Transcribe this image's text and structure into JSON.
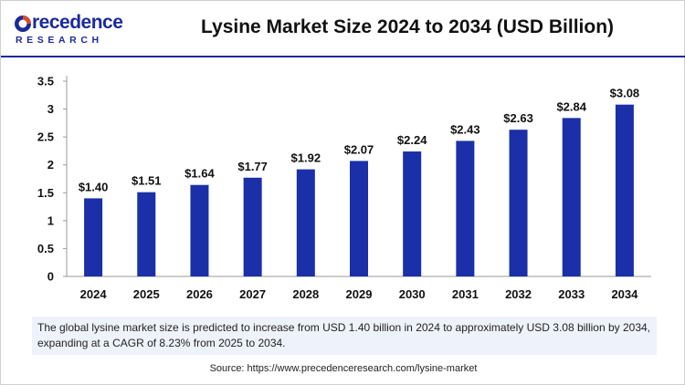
{
  "header": {
    "logo_word": "recedence",
    "logo_sub": "RESEARCH",
    "title": "Lysine Market Size 2024 to 2034 (USD Billion)"
  },
  "colors": {
    "bar": "#1a2fa8",
    "brand": "#1b2a9a",
    "accent": "#d94a2a"
  },
  "chart_data": {
    "type": "bar",
    "categories": [
      "2024",
      "2025",
      "2026",
      "2027",
      "2028",
      "2029",
      "2030",
      "2031",
      "2032",
      "2033",
      "2034"
    ],
    "values": [
      1.4,
      1.51,
      1.64,
      1.77,
      1.92,
      2.07,
      2.24,
      2.43,
      2.63,
      2.84,
      3.08
    ],
    "data_labels": [
      "$1.40",
      "$1.51",
      "$1.64",
      "$1.77",
      "$1.92",
      "$2.07",
      "$2.24",
      "$2.43",
      "$2.63",
      "$2.84",
      "$3.08"
    ],
    "title": "Lysine Market Size 2024 to 2034 (USD Billion)",
    "xlabel": "",
    "ylabel": "",
    "ylim": [
      0,
      3.5
    ],
    "yticks": [
      "0",
      "0.5",
      "1",
      "1.5",
      "2",
      "2.5",
      "3",
      "3.5"
    ],
    "grid": false,
    "legend": "none"
  },
  "note": "The global lysine market size is predicted to increase from USD 1.40 billion in 2024 to approximately USD 3.08 billion by 2034, expanding at a CAGR of 8.23% from 2025 to 2034.",
  "source": "Source: https://www.precedenceresearch.com/lysine-market"
}
